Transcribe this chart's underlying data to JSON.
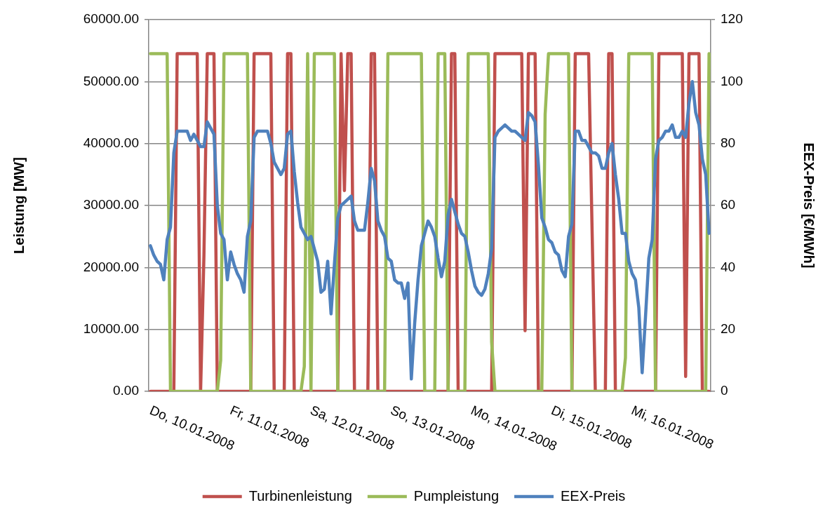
{
  "chart_data": {
    "type": "line",
    "ylabel": "Leistung [MW]",
    "y2label": "EEX-Preis [€/MWh]",
    "categories": [
      "Do, 10.01.2008",
      null,
      null,
      null,
      null,
      null,
      null,
      null,
      null,
      null,
      null,
      null,
      null,
      null,
      null,
      null,
      null,
      null,
      null,
      null,
      null,
      null,
      null,
      null,
      "Fr, 11.01.2008",
      null,
      null,
      null,
      null,
      null,
      null,
      null,
      null,
      null,
      null,
      null,
      null,
      null,
      null,
      null,
      null,
      null,
      null,
      null,
      null,
      null,
      null,
      null,
      "Sa, 12.01.2008",
      null,
      null,
      null,
      null,
      null,
      null,
      null,
      null,
      null,
      null,
      null,
      null,
      null,
      null,
      null,
      null,
      null,
      null,
      null,
      null,
      null,
      null,
      null,
      "So, 13.01.2008",
      null,
      null,
      null,
      null,
      null,
      null,
      null,
      null,
      null,
      null,
      null,
      null,
      null,
      null,
      null,
      null,
      null,
      null,
      null,
      null,
      null,
      null,
      null,
      "Mo, 14.01.2008",
      null,
      null,
      null,
      null,
      null,
      null,
      null,
      null,
      null,
      null,
      null,
      null,
      null,
      null,
      null,
      null,
      null,
      null,
      null,
      null,
      null,
      null,
      null,
      "Di, 15.01.2008",
      null,
      null,
      null,
      null,
      null,
      null,
      null,
      null,
      null,
      null,
      null,
      null,
      null,
      null,
      null,
      null,
      null,
      null,
      null,
      null,
      null,
      null,
      null,
      "Mi, 16.01.2008",
      null,
      null,
      null,
      null,
      null,
      null,
      null,
      null,
      null,
      null,
      null,
      null,
      null,
      null,
      null,
      null,
      null,
      null,
      null,
      null,
      null,
      null,
      null
    ],
    "ylim": [
      0,
      60000
    ],
    "yticks": [
      {
        "value": 0,
        "label": "0.00"
      },
      {
        "value": 10000,
        "label": "10000.00"
      },
      {
        "value": 20000,
        "label": "20000.00"
      },
      {
        "value": 30000,
        "label": "30000.00"
      },
      {
        "value": 40000,
        "label": "40000.00"
      },
      {
        "value": 50000,
        "label": "50000.00"
      },
      {
        "value": 60000,
        "label": "60000.00"
      }
    ],
    "y2lim": [
      0,
      120
    ],
    "y2ticks": [
      0,
      20,
      40,
      60,
      80,
      100,
      120
    ],
    "grid": "y",
    "legend": "bottom",
    "series": [
      {
        "name": "Turbinenleistung",
        "color": "#c0504d",
        "values": [
          0,
          0,
          0,
          0,
          0,
          0,
          0,
          0,
          54500,
          54500,
          54500,
          54500,
          54500,
          54500,
          54500,
          0,
          22000,
          54500,
          54500,
          54500,
          0,
          0,
          0,
          0,
          0,
          0,
          0,
          0,
          0,
          0,
          0,
          54500,
          54500,
          54500,
          54500,
          54500,
          54500,
          0,
          0,
          0,
          0,
          54500,
          54500,
          0,
          0,
          0,
          0,
          0,
          0,
          0,
          0,
          0,
          0,
          0,
          0,
          0,
          0,
          54500,
          32400,
          54500,
          54500,
          0,
          0,
          0,
          0,
          0,
          54500,
          54500,
          0,
          0,
          0,
          0,
          0,
          0,
          0,
          0,
          0,
          0,
          0,
          0,
          0,
          0,
          0,
          0,
          0,
          0,
          0,
          0,
          0,
          0,
          54500,
          54500,
          0,
          0,
          0,
          0,
          0,
          0,
          0,
          0,
          0,
          0,
          0,
          54500,
          54500,
          54500,
          54500,
          54500,
          54500,
          54500,
          54500,
          54500,
          9800,
          54500,
          54500,
          54500,
          0,
          0,
          0,
          0,
          0,
          0,
          0,
          0,
          0,
          0,
          0,
          54500,
          54500,
          54500,
          54500,
          54500,
          27000,
          0,
          0,
          0,
          0,
          54500,
          54500,
          0,
          0,
          0,
          0,
          0,
          0,
          0,
          0,
          0,
          0,
          0,
          0,
          0,
          54500,
          54500,
          54500,
          54500,
          54500,
          54500,
          54500,
          54500,
          2400,
          54500,
          54500,
          54500,
          54500,
          0,
          0,
          0
        ]
      },
      {
        "name": "Pumpleistung",
        "color": "#9bbb59",
        "values": [
          54500,
          54500,
          54500,
          54500,
          54500,
          54500,
          0,
          0,
          0,
          0,
          0,
          0,
          0,
          0,
          0,
          0,
          0,
          0,
          0,
          0,
          0,
          5000,
          54500,
          54500,
          54500,
          54500,
          54500,
          54500,
          54500,
          54500,
          0,
          0,
          0,
          0,
          0,
          0,
          0,
          0,
          0,
          0,
          0,
          0,
          0,
          0,
          0,
          0,
          4000,
          54500,
          0,
          54500,
          54500,
          54500,
          54500,
          54500,
          54500,
          54500,
          0,
          0,
          0,
          0,
          0,
          0,
          0,
          0,
          0,
          0,
          0,
          0,
          0,
          0,
          0,
          54500,
          54500,
          54500,
          54500,
          54500,
          54500,
          54500,
          54500,
          54500,
          54500,
          54500,
          0,
          0,
          0,
          0,
          54500,
          54500,
          54500,
          0,
          0,
          0,
          0,
          0,
          0,
          54500,
          54500,
          54500,
          54500,
          54500,
          54500,
          54500,
          8000,
          0,
          0,
          0,
          0,
          0,
          0,
          0,
          0,
          0,
          0,
          0,
          0,
          0,
          0,
          0,
          44700,
          54500,
          54500,
          54500,
          54500,
          54500,
          54500,
          54500,
          0,
          0,
          0,
          0,
          0,
          0,
          0,
          0,
          0,
          0,
          0,
          0,
          0,
          0,
          0,
          0,
          5400,
          54500,
          54500,
          54500,
          54500,
          54500,
          54500,
          54500,
          54500,
          0,
          0,
          0,
          0,
          0,
          0,
          0,
          0,
          0,
          0,
          0,
          0,
          0,
          0,
          0,
          0,
          54500
        ]
      },
      {
        "name": "EEX-Preis",
        "color": "#4f81bd",
        "axis": "y2",
        "values": [
          47,
          44,
          42,
          41,
          36,
          49,
          53,
          77,
          84,
          84,
          84,
          84,
          81,
          83,
          81,
          79,
          79,
          87,
          85,
          83,
          60,
          51,
          49,
          36,
          45,
          41,
          38,
          36,
          32,
          50,
          55,
          82,
          84,
          84,
          84,
          84,
          80,
          74,
          72,
          70,
          72,
          83,
          84,
          71,
          61,
          53,
          51,
          49,
          50,
          46,
          42,
          32,
          33,
          42,
          25,
          41,
          56,
          60,
          61,
          62,
          63,
          55,
          52,
          52,
          52,
          61,
          72,
          68,
          55,
          52,
          50,
          43,
          42,
          36,
          35,
          35,
          30,
          35,
          4,
          22,
          36,
          47,
          51,
          55,
          53,
          50,
          43,
          37,
          42,
          57,
          62,
          58,
          54,
          51,
          50,
          45,
          39,
          34,
          32,
          31,
          33,
          38,
          46,
          82,
          84,
          85,
          86,
          85,
          84,
          84,
          83,
          82,
          81,
          90,
          89,
          87,
          73,
          56,
          53,
          49,
          48,
          45,
          44,
          39,
          37,
          50,
          54,
          84,
          84,
          81,
          81,
          79,
          77,
          77,
          76,
          72,
          72,
          77,
          80,
          70,
          62,
          51,
          51,
          42,
          38,
          36,
          27,
          6,
          24,
          43,
          49,
          75,
          81,
          82,
          84,
          84,
          86,
          82,
          82,
          84,
          82,
          93,
          100,
          90,
          86,
          75,
          70,
          51
        ]
      }
    ]
  }
}
